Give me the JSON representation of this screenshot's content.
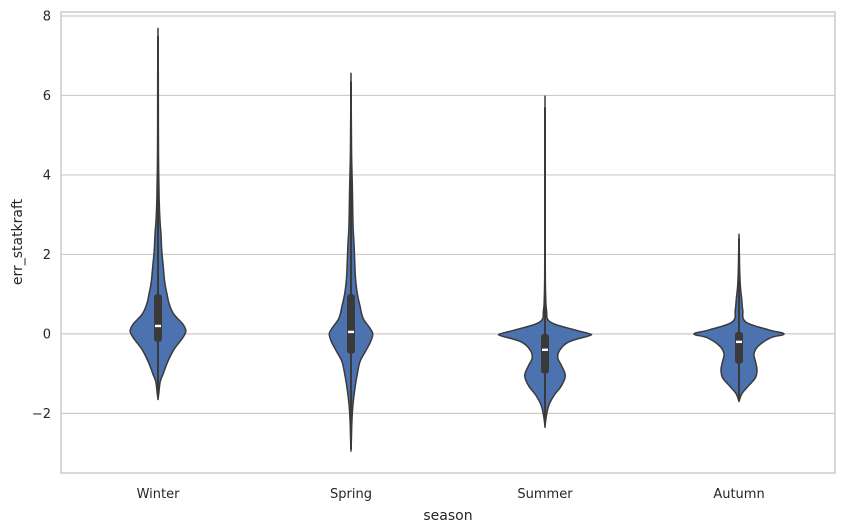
{
  "chart_data": {
    "type": "violin",
    "title": "",
    "xlabel": "season",
    "ylabel": "err_statkraft",
    "ylim": [
      -3.5,
      8.1
    ],
    "yticks": [
      -2,
      0,
      2,
      4,
      6,
      8
    ],
    "ytick_labels": [
      "−2",
      "0",
      "2",
      "4",
      "6",
      "8"
    ],
    "grid": "horizontal",
    "colors": {
      "violin_fill": "#4c72b0",
      "violin_edge": "#3a3a3a",
      "box": "#3a3a3a",
      "median": "#ffffff",
      "grid": "#cccccc",
      "frame": "#cccccc"
    },
    "categories": [
      "Winter",
      "Spring",
      "Summer",
      "Autumn"
    ],
    "violins": [
      {
        "name": "Winter",
        "min": -1.65,
        "max": 7.55,
        "q1": -0.2,
        "median": 0.2,
        "q3": 1.0,
        "whisker_low": -1.6,
        "whisker_high": 7.5,
        "density": [
          [
            -1.65,
            0.0
          ],
          [
            -1.5,
            0.01
          ],
          [
            -1.2,
            0.03
          ],
          [
            -1.0,
            0.07
          ],
          [
            -0.7,
            0.13
          ],
          [
            -0.4,
            0.21
          ],
          [
            -0.15,
            0.31
          ],
          [
            0.0,
            0.36
          ],
          [
            0.1,
            0.37
          ],
          [
            0.25,
            0.33
          ],
          [
            0.5,
            0.21
          ],
          [
            0.75,
            0.15
          ],
          [
            1.0,
            0.12
          ],
          [
            1.3,
            0.09
          ],
          [
            1.7,
            0.07
          ],
          [
            2.1,
            0.05
          ],
          [
            2.5,
            0.04
          ],
          [
            2.9,
            0.025
          ],
          [
            3.4,
            0.015
          ],
          [
            4.2,
            0.008
          ],
          [
            5.2,
            0.005
          ],
          [
            6.5,
            0.004
          ],
          [
            7.55,
            0.0
          ]
        ]
      },
      {
        "name": "Spring",
        "min": -2.95,
        "max": 6.4,
        "q1": -0.5,
        "median": 0.05,
        "q3": 1.0,
        "whisker_low": -2.9,
        "whisker_high": 6.35,
        "density": [
          [
            -2.95,
            0.0
          ],
          [
            -2.6,
            0.006
          ],
          [
            -2.2,
            0.012
          ],
          [
            -1.8,
            0.025
          ],
          [
            -1.4,
            0.05
          ],
          [
            -1.0,
            0.085
          ],
          [
            -0.7,
            0.12
          ],
          [
            -0.45,
            0.19
          ],
          [
            -0.2,
            0.26
          ],
          [
            0.0,
            0.29
          ],
          [
            0.15,
            0.25
          ],
          [
            0.4,
            0.16
          ],
          [
            0.7,
            0.12
          ],
          [
            1.0,
            0.085
          ],
          [
            1.4,
            0.06
          ],
          [
            1.8,
            0.05
          ],
          [
            2.2,
            0.042
          ],
          [
            2.6,
            0.03
          ],
          [
            3.0,
            0.024
          ],
          [
            3.5,
            0.02
          ],
          [
            4.0,
            0.014
          ],
          [
            4.5,
            0.008
          ],
          [
            5.2,
            0.005
          ],
          [
            6.4,
            0.0
          ]
        ]
      },
      {
        "name": "Summer",
        "min": -2.35,
        "max": 5.75,
        "q1": -1.0,
        "median": -0.4,
        "q3": 0.0,
        "whisker_low": -2.3,
        "whisker_high": 5.7,
        "density": [
          [
            -2.35,
            0.0
          ],
          [
            -2.1,
            0.015
          ],
          [
            -1.8,
            0.05
          ],
          [
            -1.55,
            0.12
          ],
          [
            -1.3,
            0.22
          ],
          [
            -1.05,
            0.27
          ],
          [
            -0.8,
            0.22
          ],
          [
            -0.6,
            0.17
          ],
          [
            -0.4,
            0.2
          ],
          [
            -0.2,
            0.32
          ],
          [
            -0.05,
            0.58
          ],
          [
            0.0,
            0.6
          ],
          [
            0.1,
            0.4
          ],
          [
            0.3,
            0.07
          ],
          [
            0.6,
            0.02
          ],
          [
            1.0,
            0.008
          ],
          [
            1.5,
            0.004
          ],
          [
            2.5,
            0.002
          ],
          [
            4.0,
            0.002
          ],
          [
            5.75,
            0.0
          ]
        ]
      },
      {
        "name": "Autumn",
        "min": -1.7,
        "max": 2.45,
        "q1": -0.75,
        "median": -0.2,
        "q3": 0.05,
        "whisker_low": -1.65,
        "whisker_high": 2.4,
        "density": [
          [
            -1.7,
            0.0
          ],
          [
            -1.5,
            0.04
          ],
          [
            -1.3,
            0.13
          ],
          [
            -1.1,
            0.22
          ],
          [
            -0.9,
            0.24
          ],
          [
            -0.7,
            0.22
          ],
          [
            -0.5,
            0.2
          ],
          [
            -0.3,
            0.26
          ],
          [
            -0.1,
            0.42
          ],
          [
            0.0,
            0.6
          ],
          [
            0.1,
            0.4
          ],
          [
            0.3,
            0.09
          ],
          [
            0.6,
            0.05
          ],
          [
            0.9,
            0.035
          ],
          [
            1.2,
            0.018
          ],
          [
            1.6,
            0.009
          ],
          [
            2.0,
            0.005
          ],
          [
            2.45,
            0.0
          ]
        ]
      }
    ]
  }
}
